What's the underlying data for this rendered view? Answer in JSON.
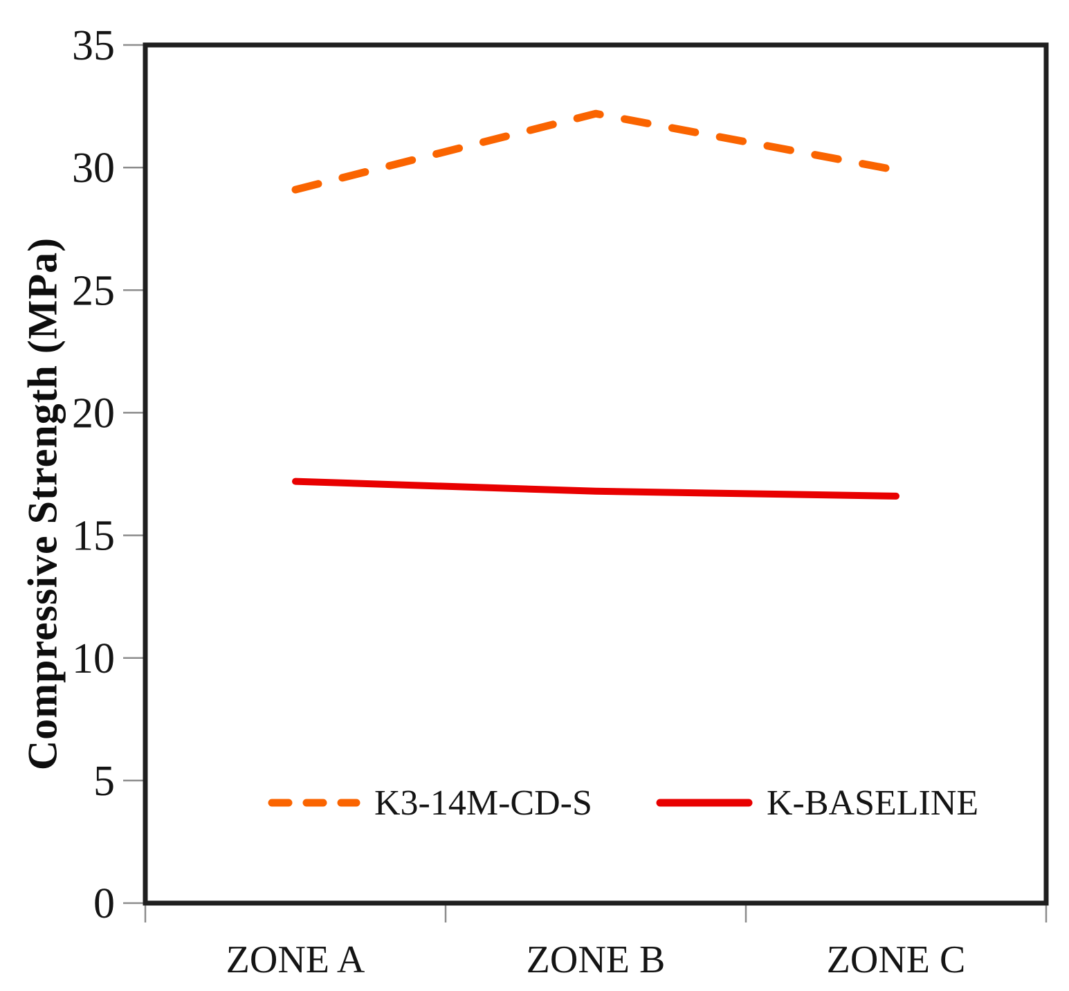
{
  "chart_data": {
    "type": "line",
    "categories": [
      "ZONE A",
      "ZONE B",
      "ZONE C"
    ],
    "series": [
      {
        "name": "K3-14M-CD-S",
        "values": [
          29.1,
          32.2,
          29.9
        ],
        "color": "#FA6400",
        "style": "dashed"
      },
      {
        "name": "K-BASELINE",
        "values": [
          17.2,
          16.8,
          16.6
        ],
        "color": "#E80000",
        "style": "solid"
      }
    ],
    "title": "",
    "xlabel": "",
    "ylabel": "Compressive Strength (MPa)",
    "ylim": [
      0,
      35
    ],
    "yticks": [
      0,
      5,
      10,
      15,
      20,
      25,
      30,
      35
    ],
    "grid": false,
    "legend_position": "bottom-inside",
    "frame_color": "#1f1f1f",
    "tick_color": "#8c8c8c"
  }
}
